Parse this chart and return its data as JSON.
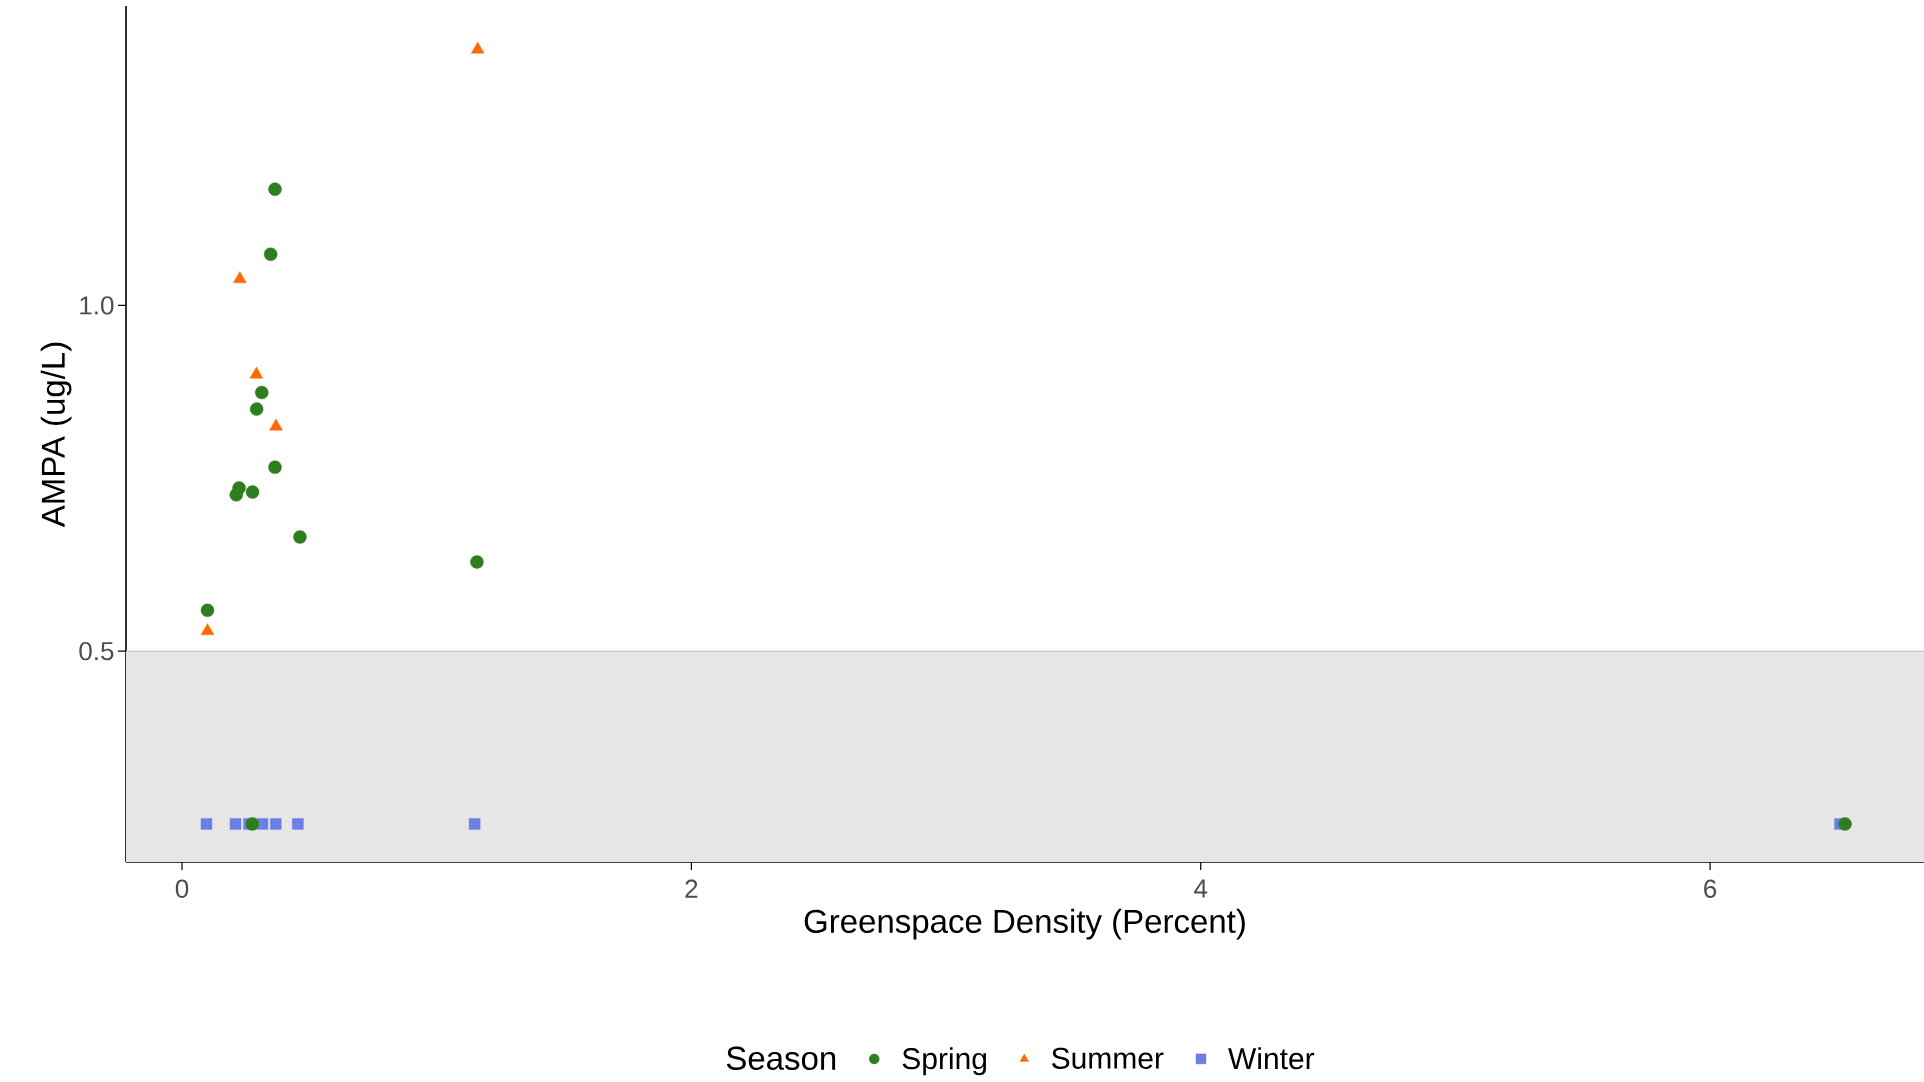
{
  "chart_data": {
    "type": "scatter",
    "xlabel": "Greenspace Density (Percent)",
    "ylabel": "AMPA (ug/L)",
    "legend_title": "Season",
    "xlim": [
      -0.22,
      6.84
    ],
    "ylim": [
      0.195,
      1.433
    ],
    "xticks": [
      0,
      2,
      4,
      6
    ],
    "yticks": [
      0.5,
      {
        "value": 1.0,
        "label": "1.0"
      }
    ],
    "bands": [
      {
        "axis": "y",
        "from": 0.195,
        "to": 0.5,
        "color": "#e6e6e6"
      }
    ],
    "ref_lines": [
      {
        "axis": "y",
        "value": 0.5,
        "color": "#bfbfbf"
      }
    ],
    "legend": "bottom",
    "series": [
      {
        "name": "Spring",
        "color": "#2e7d1e",
        "marker": "circle",
        "x": [
          0.365,
          0.348,
          0.313,
          0.293,
          0.365,
          0.224,
          0.213,
          0.277,
          0.463,
          1.158,
          0.1,
          0.276,
          6.53
        ],
        "values": [
          1.168,
          1.074,
          0.874,
          0.85,
          0.766,
          0.736,
          0.726,
          0.73,
          0.665,
          0.629,
          0.559,
          0.25,
          0.25
        ]
      },
      {
        "name": "Summer",
        "color": "#ff6a00",
        "marker": "triangle",
        "x": [
          1.161,
          0.227,
          0.292,
          0.369,
          0.1
        ],
        "values": [
          1.37,
          1.038,
          0.9,
          0.825,
          0.529
        ]
      },
      {
        "name": "Winter",
        "color": "#6b7fe6",
        "marker": "square",
        "x": [
          0.096,
          0.21,
          0.263,
          0.316,
          0.368,
          0.455,
          1.149,
          6.51
        ],
        "values": [
          0.25,
          0.25,
          0.25,
          0.25,
          0.25,
          0.25,
          0.25,
          0.25
        ]
      }
    ]
  }
}
